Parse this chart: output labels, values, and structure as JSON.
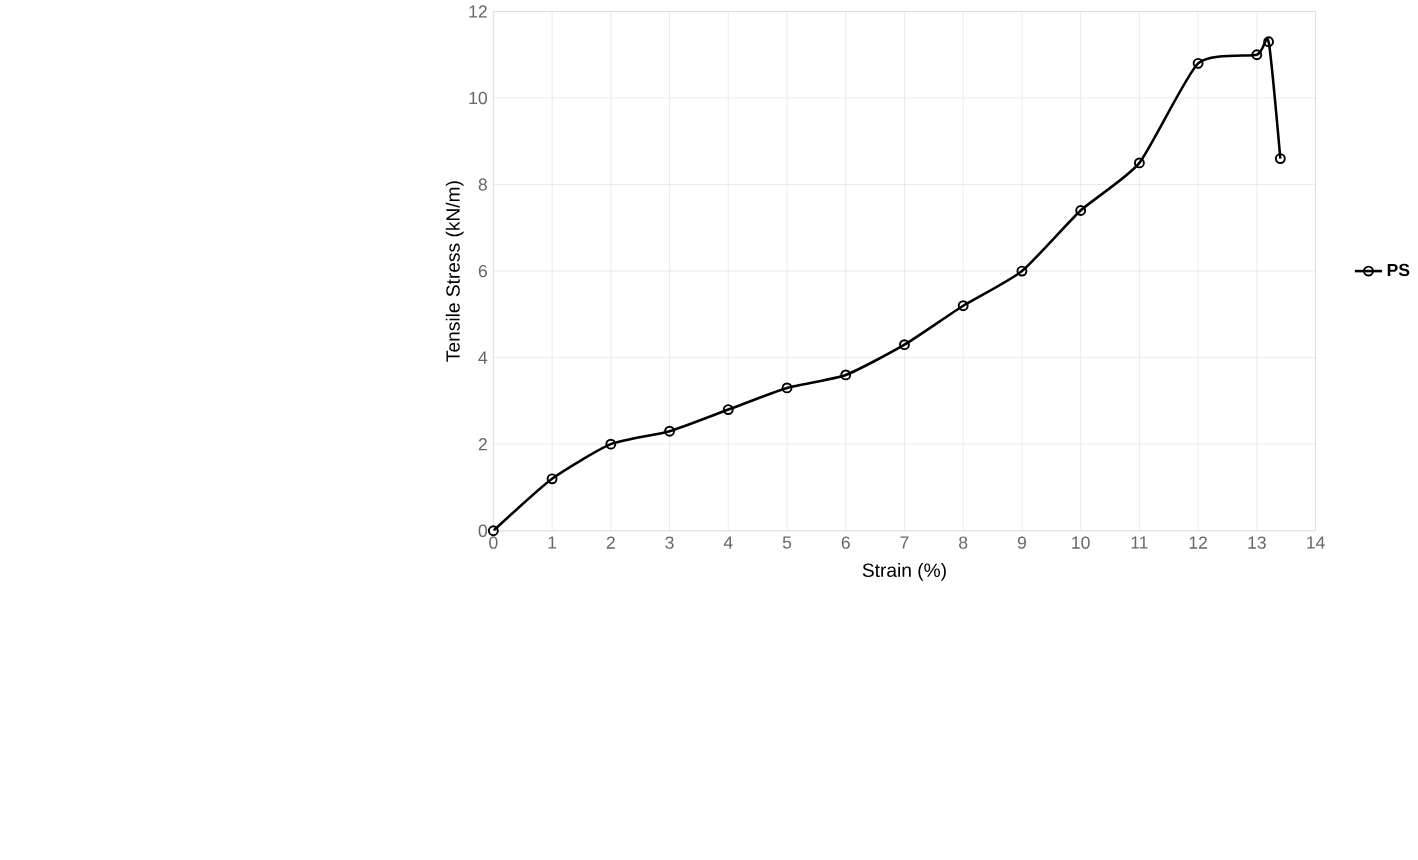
{
  "chart_data": {
    "type": "line",
    "xlabel": "Strain (%)",
    "ylabel": "Tensile Stress (kN/m)",
    "series": [
      {
        "name": "PS",
        "color": "#000000",
        "x": [
          0,
          1,
          2,
          3,
          4,
          5,
          6,
          7,
          8,
          9,
          10,
          11,
          12,
          13,
          13.2,
          13.4
        ],
        "values": [
          0,
          1.2,
          2.0,
          2.3,
          2.8,
          3.3,
          3.6,
          4.3,
          5.2,
          6.0,
          7.4,
          8.5,
          10.8,
          11.0,
          11.3,
          8.6
        ]
      }
    ],
    "xlim": [
      0,
      14
    ],
    "xticks": [
      0,
      1,
      2,
      3,
      4,
      5,
      6,
      7,
      8,
      9,
      10,
      11,
      12,
      13,
      14
    ],
    "ylim": [
      0,
      12
    ],
    "yticks": [
      0,
      2,
      4,
      6,
      8,
      10,
      12
    ],
    "grid": true,
    "legend": "right",
    "marker": "circle"
  }
}
